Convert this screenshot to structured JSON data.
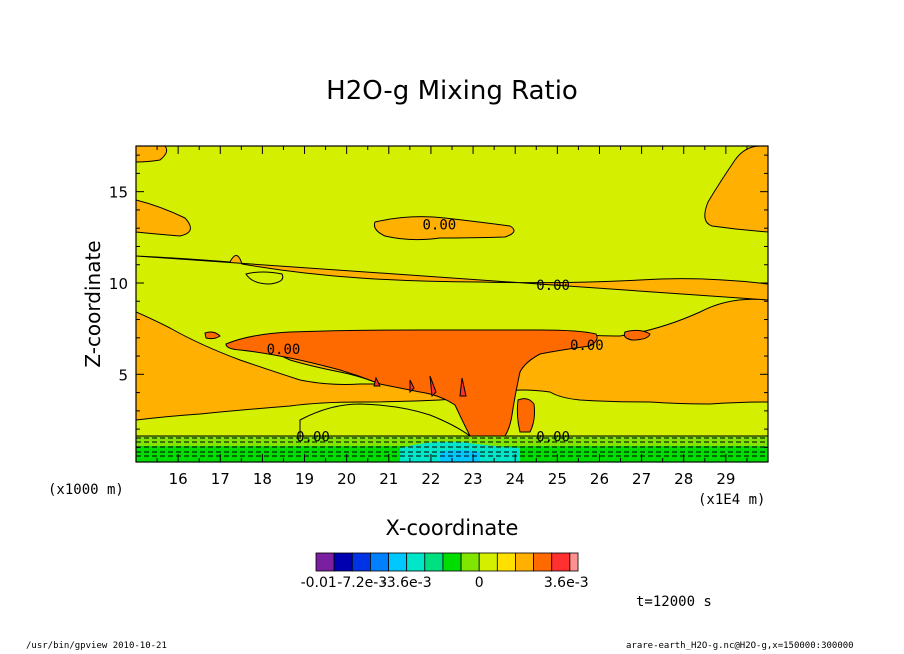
{
  "chart_data": {
    "type": "contour",
    "title": "H2O-g Mixing Ratio",
    "xlabel": "X-coordinate",
    "ylabel": "Z-coordinate",
    "x_unit": "(x1E4 m)",
    "y_unit": "(x1000 m)",
    "xlim": [
      15,
      30
    ],
    "ylim": [
      0.2,
      17.5
    ],
    "x_ticks": [
      "16",
      "17",
      "18",
      "19",
      "20",
      "21",
      "22",
      "23",
      "24",
      "25",
      "26",
      "27",
      "28",
      "29"
    ],
    "y_ticks": [
      "5",
      "10",
      "15"
    ],
    "contour_labels": [
      "0.00",
      "0.00",
      "0.00",
      "0.00",
      "0.00",
      "0.00"
    ],
    "colorbar": {
      "colors": [
        "#7a1fa0",
        "#0000b0",
        "#0033e6",
        "#0080ff",
        "#00c8ff",
        "#00e6c8",
        "#00e080",
        "#00dd00",
        "#80e600",
        "#d4f000",
        "#ffe000",
        "#ffb000",
        "#ff6a00",
        "#ff3030",
        "#ff9090"
      ],
      "tick_labels": [
        "-0.01",
        "-7.2e-3",
        "-3.6e-3",
        "0",
        "3.6e-3"
      ]
    }
  },
  "time_label": "t=12000 s",
  "footer_left": "/usr/bin/gpview   2010-10-21",
  "footer_right": "arare-earth_H2O-g.nc@H2O-g,x=150000:300000"
}
